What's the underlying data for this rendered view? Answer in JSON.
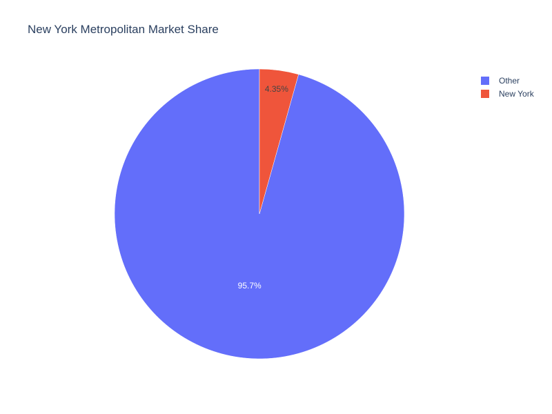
{
  "chart_data": {
    "type": "pie",
    "title": "New York Metropolitan Market Share",
    "slices": [
      {
        "name": "Other",
        "value": 95.65,
        "label": "95.7%",
        "color": "#636efa",
        "label_color": "#ffffff"
      },
      {
        "name": "New York",
        "value": 4.35,
        "label": "4.35%",
        "color": "#ef553b",
        "label_color": "#444444"
      }
    ],
    "legend": {
      "position": "top-right",
      "entries": [
        "Other",
        "New York"
      ]
    }
  }
}
